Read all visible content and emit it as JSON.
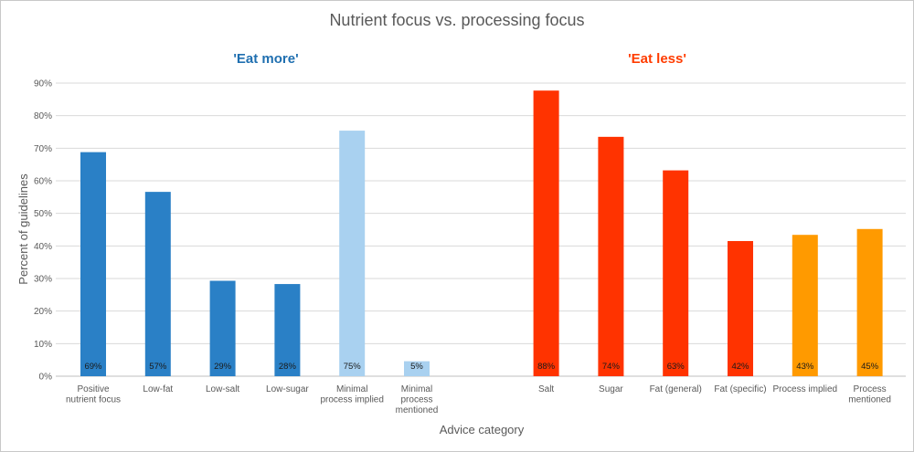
{
  "chart_data": {
    "type": "bar",
    "title": "Nutrient focus vs. processing focus",
    "xlabel": "Advice category",
    "ylabel": "Percent of guidelines",
    "ylim": [
      0,
      90
    ],
    "yticks": [
      "0%",
      "10%",
      "20%",
      "30%",
      "40%",
      "50%",
      "60%",
      "70%",
      "80%",
      "90%"
    ],
    "grid": true,
    "groups": [
      {
        "label": "'Eat more'",
        "color": "#1f6fb0"
      },
      {
        "label": "'Eat less'",
        "color": "#ff3c00"
      }
    ],
    "categories": [
      "Positive nutrient focus",
      "Low-fat",
      "Low-salt",
      "Low-sugar",
      "Minimal process implied",
      "Minimal process mentioned",
      "Salt",
      "Sugar",
      "Fat (general)",
      "Fat (specific)",
      "Process implied",
      "Process mentioned"
    ],
    "category_lines": [
      [
        "Positive",
        "nutrient focus"
      ],
      [
        "Low-fat"
      ],
      [
        "Low-salt"
      ],
      [
        "Low-sugar"
      ],
      [
        "Minimal",
        "process implied"
      ],
      [
        "Minimal",
        "process",
        "mentioned"
      ],
      [
        "Salt"
      ],
      [
        "Sugar"
      ],
      [
        "Fat (general)"
      ],
      [
        "Fat (specific)"
      ],
      [
        "Process implied"
      ],
      [
        "Process",
        "mentioned"
      ]
    ],
    "values": [
      69,
      57,
      29,
      28,
      75,
      5,
      88,
      74,
      63,
      42,
      43,
      45
    ],
    "value_labels": [
      "69%",
      "57%",
      "29%",
      "28%",
      "75%",
      "5%",
      "88%",
      "74%",
      "63%",
      "42%",
      "43%",
      "45%"
    ],
    "bar_values": [
      68.8,
      56.6,
      29.3,
      28.3,
      75.4,
      4.6,
      87.7,
      73.5,
      63.2,
      41.5,
      43.4,
      45.2
    ],
    "colors": [
      "#2a80c6",
      "#2a80c6",
      "#2a80c6",
      "#2a80c6",
      "#a9d1f0",
      "#a9d1f0",
      "#ff3300",
      "#ff3300",
      "#ff3300",
      "#ff3300",
      "#ff9a00",
      "#ff9a00"
    ]
  }
}
